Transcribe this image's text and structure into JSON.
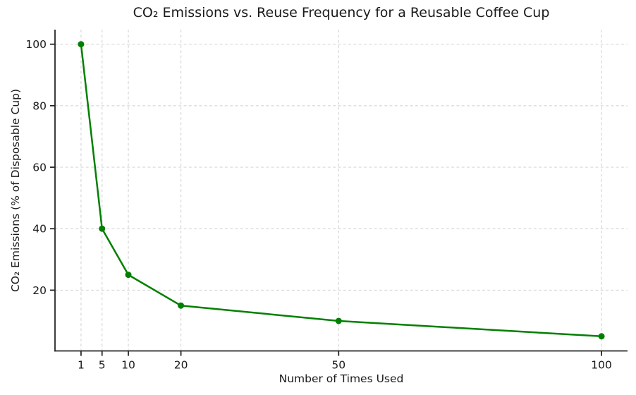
{
  "chart_data": {
    "type": "line",
    "title": "CO₂ Emissions vs. Reuse Frequency for a Reusable Coffee Cup",
    "xlabel": "Number of Times Used",
    "ylabel": "CO₂ Emissions (% of Disposable Cup)",
    "x": [
      1,
      5,
      10,
      20,
      50,
      100
    ],
    "y": [
      100,
      40,
      25,
      15,
      10,
      5
    ],
    "xticks": [
      1,
      5,
      10,
      20,
      50,
      100
    ],
    "yticks": [
      20,
      40,
      60,
      80,
      100
    ],
    "xlim": [
      -3.95,
      104.95
    ],
    "ylim": [
      0.25,
      104.75
    ],
    "grid": true,
    "grid_style": "dashed",
    "legend": null,
    "marker": "circle",
    "line_color": "#008000",
    "grid_color": "#d7d7d7",
    "axis_color": "#262626",
    "text_color": "#1a1a1a",
    "background": "#ffffff"
  }
}
